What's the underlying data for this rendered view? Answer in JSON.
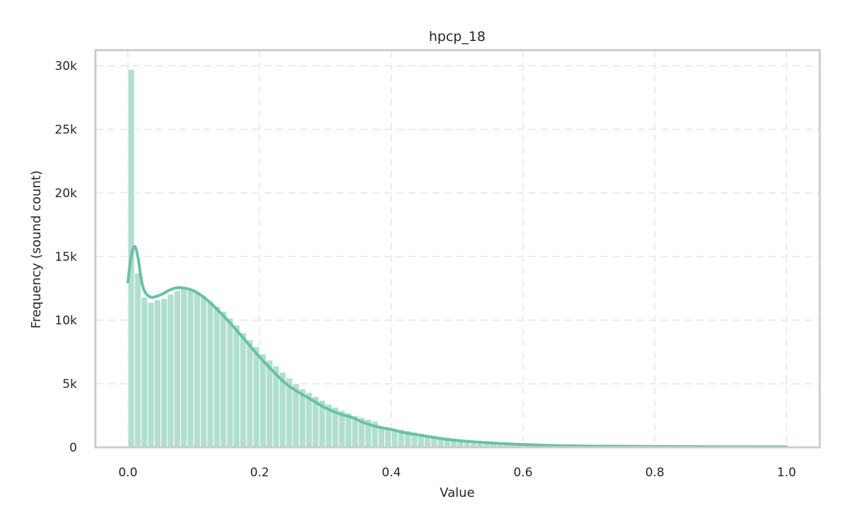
{
  "chart_data": {
    "type": "bar",
    "subtype": "histogram_with_kde",
    "title": "hpcp_18",
    "xlabel": "Value",
    "ylabel": "Frequency (sound count)",
    "xlim": [
      -0.05,
      1.05
    ],
    "ylim": [
      0,
      31200
    ],
    "x_ticks": [
      0.0,
      0.2,
      0.4,
      0.6,
      0.8,
      1.0
    ],
    "x_tick_labels": [
      "0.0",
      "0.2",
      "0.4",
      "0.6",
      "0.8",
      "1.0"
    ],
    "y_ticks": [
      0,
      5000,
      10000,
      15000,
      20000,
      25000,
      30000
    ],
    "y_tick_labels": [
      "0",
      "5k",
      "10k",
      "15k",
      "20k",
      "25k",
      "30k"
    ],
    "grid": true,
    "legend": null,
    "bar_color": "#b1dfcd",
    "kde_color": "#66c2a5",
    "bin_width": 0.01,
    "bin_start": 0.0,
    "values": [
      29700,
      13700,
      11800,
      11400,
      11600,
      11700,
      12050,
      12300,
      12550,
      12450,
      12200,
      11900,
      11500,
      11100,
      10700,
      10150,
      9600,
      9000,
      8450,
      7900,
      7350,
      6850,
      6400,
      5900,
      5450,
      5000,
      4600,
      4300,
      4000,
      3700,
      3400,
      3150,
      2900,
      2700,
      2500,
      2350,
      2200,
      2050,
      1650,
      1600,
      1500,
      1400,
      1300,
      1200,
      1100,
      1000,
      930,
      860,
      790,
      720,
      660,
      600,
      550,
      500,
      450,
      410,
      370,
      330,
      300,
      270,
      240,
      215,
      195,
      175,
      160,
      145,
      130,
      118,
      108,
      100,
      92,
      86,
      80,
      75,
      70,
      66,
      62,
      58,
      55,
      52,
      49,
      46,
      44,
      42,
      40,
      38,
      36,
      34,
      32,
      30,
      29,
      28,
      27,
      26,
      25,
      24,
      23,
      22,
      21,
      60
    ],
    "kde_points": [
      [
        0.0,
        13000
      ],
      [
        0.005,
        15000
      ],
      [
        0.01,
        15800
      ],
      [
        0.015,
        15000
      ],
      [
        0.02,
        13300
      ],
      [
        0.025,
        12300
      ],
      [
        0.035,
        11800
      ],
      [
        0.05,
        12000
      ],
      [
        0.065,
        12400
      ],
      [
        0.08,
        12550
      ],
      [
        0.1,
        12300
      ],
      [
        0.12,
        11600
      ],
      [
        0.14,
        10600
      ],
      [
        0.16,
        9500
      ],
      [
        0.18,
        8300
      ],
      [
        0.2,
        7100
      ],
      [
        0.22,
        6000
      ],
      [
        0.24,
        5000
      ],
      [
        0.26,
        4300
      ],
      [
        0.28,
        3700
      ],
      [
        0.3,
        3100
      ],
      [
        0.32,
        2650
      ],
      [
        0.34,
        2350
      ],
      [
        0.36,
        1900
      ],
      [
        0.38,
        1600
      ],
      [
        0.4,
        1400
      ],
      [
        0.42,
        1150
      ],
      [
        0.45,
        900
      ],
      [
        0.48,
        650
      ],
      [
        0.52,
        450
      ],
      [
        0.56,
        320
      ],
      [
        0.6,
        220
      ],
      [
        0.65,
        140
      ],
      [
        0.7,
        100
      ],
      [
        0.8,
        70
      ],
      [
        0.9,
        50
      ],
      [
        1.0,
        40
      ]
    ]
  }
}
